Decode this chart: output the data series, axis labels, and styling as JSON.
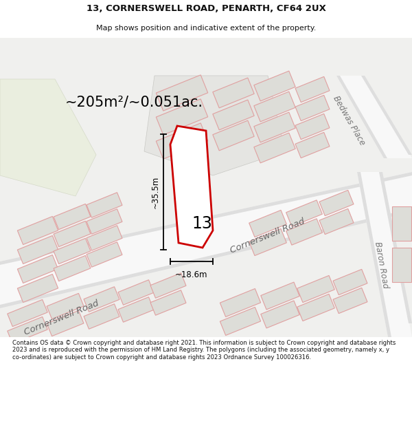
{
  "title_line1": "13, CORNERSWELL ROAD, PENARTH, CF64 2UX",
  "title_line2": "Map shows position and indicative extent of the property.",
  "area_text": "~205m²/~0.051ac.",
  "dimension_width": "~18.6m",
  "dimension_height": "~35.5m",
  "property_number": "13",
  "footer_text": "Contains OS data © Crown copyright and database right 2021. This information is subject to Crown copyright and database rights 2023 and is reproduced with the permission of HM Land Registry. The polygons (including the associated geometry, namely x, y co-ordinates) are subject to Crown copyright and database rights 2023 Ordnance Survey 100026316.",
  "map_bg": "#f2f2f0",
  "road_fill": "#f8f8f8",
  "road_edge": "#e0e0e0",
  "block_fill": "#e8e8e6",
  "block_edge": "#cccccc",
  "building_fill": "#dddddb",
  "building_edge": "#e0a0a0",
  "green_fill": "#eaeee5",
  "property_color": "#cc0000",
  "text_dark": "#111111",
  "text_mid": "#555555",
  "dim_color": "#000000"
}
